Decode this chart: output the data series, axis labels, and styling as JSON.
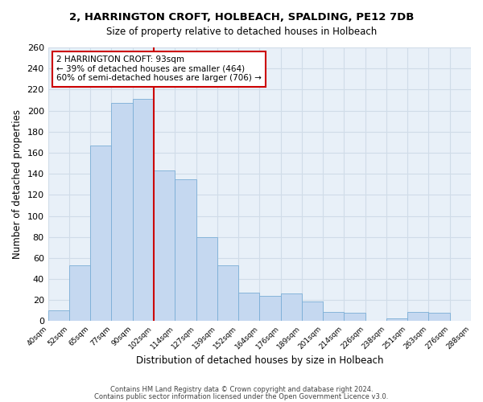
{
  "title_line1": "2, HARRINGTON CROFT, HOLBEACH, SPALDING, PE12 7DB",
  "title_line2": "Size of property relative to detached houses in Holbeach",
  "xlabel": "Distribution of detached houses by size in Holbeach",
  "ylabel": "Number of detached properties",
  "bin_edges": [
    "40sqm",
    "52sqm",
    "65sqm",
    "77sqm",
    "90sqm",
    "102sqm",
    "114sqm",
    "127sqm",
    "139sqm",
    "152sqm",
    "164sqm",
    "176sqm",
    "189sqm",
    "201sqm",
    "214sqm",
    "226sqm",
    "238sqm",
    "251sqm",
    "263sqm",
    "276sqm",
    "288sqm"
  ],
  "bar_heights": [
    10,
    53,
    167,
    207,
    211,
    143,
    135,
    80,
    53,
    27,
    24,
    26,
    19,
    9,
    8,
    0,
    3,
    9,
    8,
    0
  ],
  "bar_color": "#c5d8f0",
  "bar_edge_color": "#7aaed6",
  "vline_x": 4.5,
  "vline_color": "#cc0000",
  "annotation_title": "2 HARRINGTON CROFT: 93sqm",
  "annotation_line1": "← 39% of detached houses are smaller (464)",
  "annotation_line2": "60% of semi-detached houses are larger (706) →",
  "annotation_box_color": "#ffffff",
  "annotation_box_edge_color": "#cc0000",
  "ylim": [
    0,
    260
  ],
  "yticks": [
    0,
    20,
    40,
    60,
    80,
    100,
    120,
    140,
    160,
    180,
    200,
    220,
    240,
    260
  ],
  "footer_line1": "Contains HM Land Registry data © Crown copyright and database right 2024.",
  "footer_line2": "Contains public sector information licensed under the Open Government Licence v3.0.",
  "background_color": "#ffffff",
  "grid_color": "#d0dce8"
}
